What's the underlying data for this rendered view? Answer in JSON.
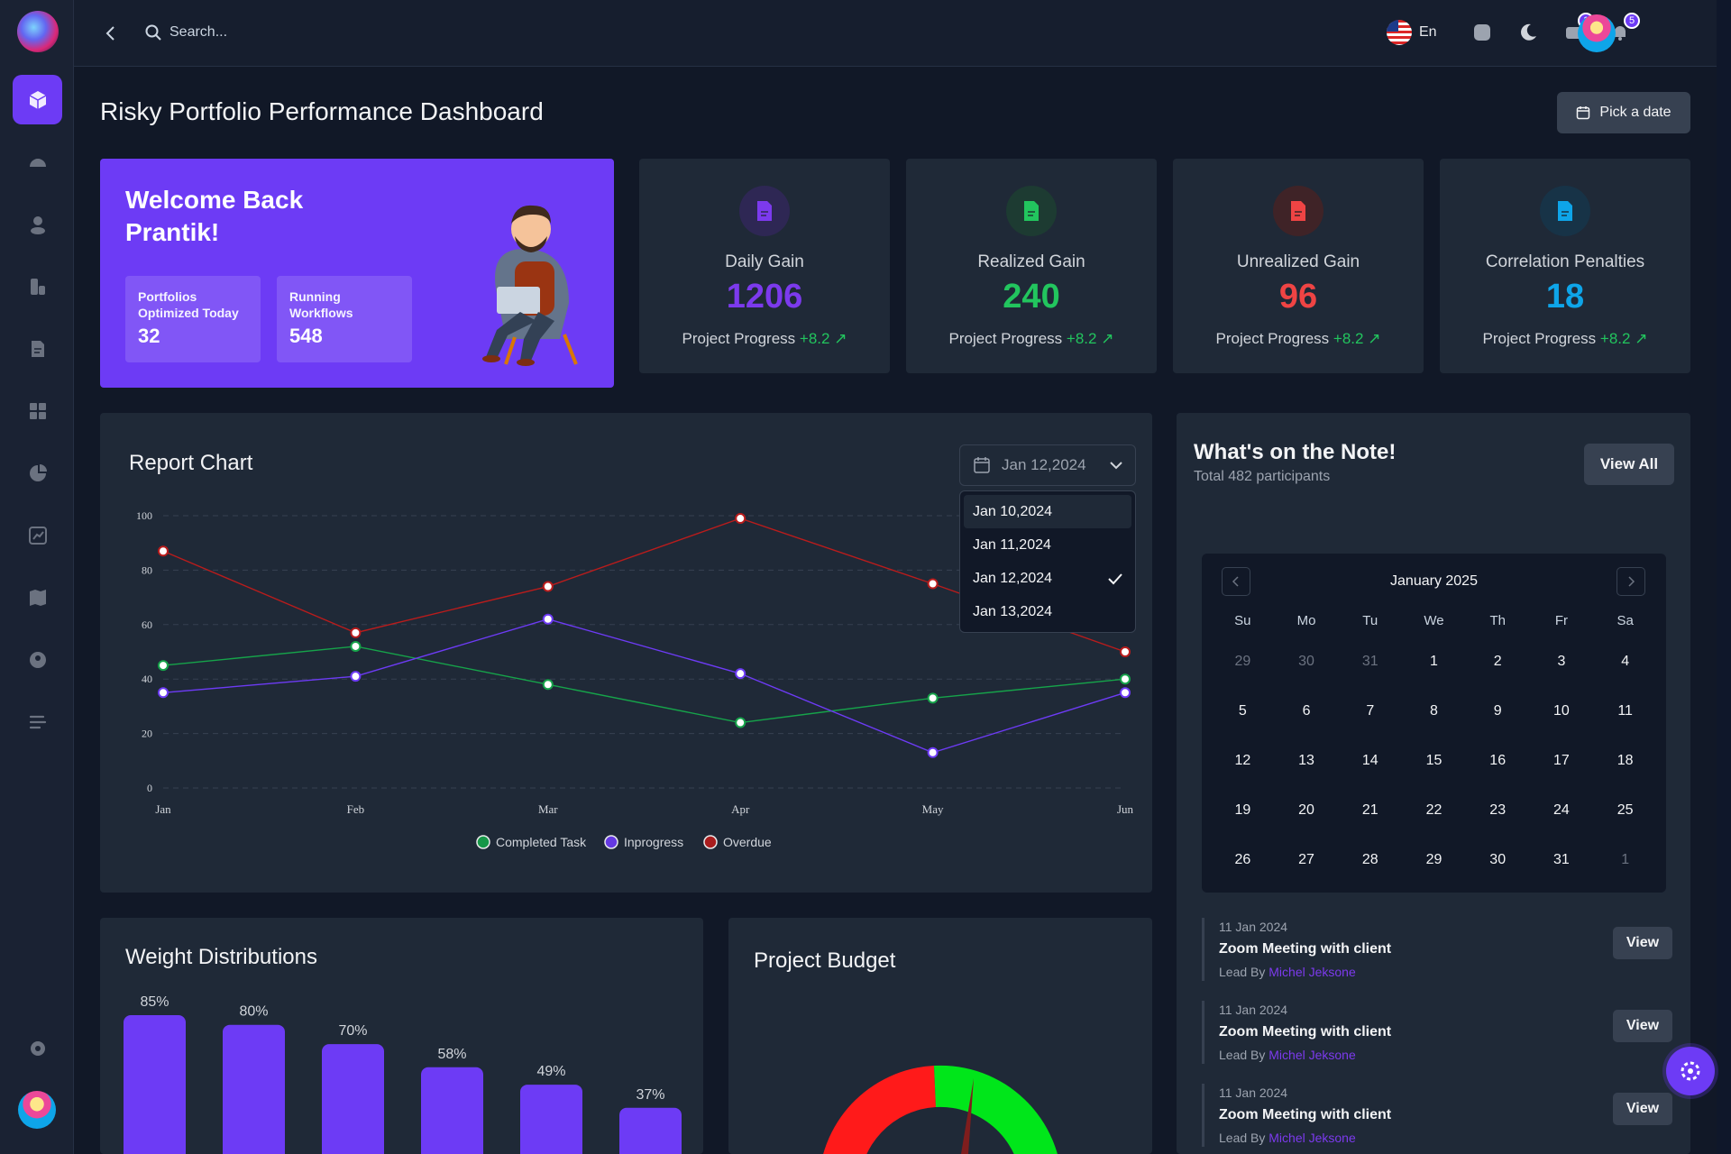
{
  "header": {
    "search_placeholder": "Search...",
    "language": "En",
    "mail_badge": "1",
    "notification_badge": "5"
  },
  "page": {
    "title": "Risky Portfolio Performance Dashboard",
    "pick_date_label": "Pick a date"
  },
  "welcome": {
    "title": "Welcome Back Prantik!",
    "stats": [
      {
        "label": "Portfolios Optimized Today",
        "value": "32"
      },
      {
        "label": "Running Workflows",
        "value": "548"
      }
    ]
  },
  "stat_cards": [
    {
      "title": "Daily Gain",
      "value": "1206",
      "progress_label": "Project Progress",
      "progress_delta": "+8.2",
      "color": "#7c3aed",
      "icon_bg": "#2e2754"
    },
    {
      "title": "Realized Gain",
      "value": "240",
      "progress_label": "Project Progress",
      "progress_delta": "+8.2",
      "color": "#22c55e",
      "icon_bg": "#1d3b32"
    },
    {
      "title": "Unrealized Gain",
      "value": "96",
      "progress_label": "Project Progress",
      "progress_delta": "+8.2",
      "color": "#ef4444",
      "icon_bg": "#3f2327"
    },
    {
      "title": "Correlation Penalties",
      "value": "18",
      "progress_label": "Project Progress",
      "progress_delta": "+8.2",
      "color": "#0ea5e9",
      "icon_bg": "#173347"
    }
  ],
  "report": {
    "title": "Report Chart",
    "selected_date": "Jan 12,2024",
    "dropdown_options": [
      "Jan 10,2024",
      "Jan 11,2024",
      "Jan 12,2024",
      "Jan 13,2024"
    ]
  },
  "chart_data": [
    {
      "type": "line",
      "categories": [
        "Jan",
        "Feb",
        "Mar",
        "Apr",
        "May",
        "Jun"
      ],
      "ylim": [
        0,
        100
      ],
      "yticks": [
        0,
        20,
        40,
        60,
        80,
        100
      ],
      "grid": true,
      "legend": "bottom-center",
      "series": [
        {
          "name": "Completed Task",
          "color": "#16a34a",
          "values": [
            45,
            52,
            38,
            24,
            33,
            40
          ]
        },
        {
          "name": "Inprogress",
          "color": "#6d3bf5",
          "values": [
            35,
            41,
            62,
            42,
            13,
            35
          ]
        },
        {
          "name": "Overdue",
          "color": "#b91c1c",
          "values": [
            87,
            57,
            74,
            99,
            75,
            50
          ]
        }
      ]
    },
    {
      "type": "bar",
      "title": "Weight Distributions",
      "values": [
        85,
        80,
        70,
        58,
        49,
        37
      ],
      "labels": [
        "85%",
        "80%",
        "70%",
        "58%",
        "49%",
        "37%"
      ],
      "color": "#6d3bf5"
    }
  ],
  "notes": {
    "title": "What's on the Note!",
    "subtitle": "Total 482 participants",
    "view_all_label": "View All",
    "calendar": {
      "month_label": "January 2025",
      "weekdays": [
        "Su",
        "Mo",
        "Tu",
        "We",
        "Th",
        "Fr",
        "Sa"
      ],
      "days": [
        {
          "d": "29",
          "muted": true
        },
        {
          "d": "30",
          "muted": true
        },
        {
          "d": "31",
          "muted": true
        },
        {
          "d": "1"
        },
        {
          "d": "2"
        },
        {
          "d": "3"
        },
        {
          "d": "4"
        },
        {
          "d": "5"
        },
        {
          "d": "6"
        },
        {
          "d": "7"
        },
        {
          "d": "8"
        },
        {
          "d": "9"
        },
        {
          "d": "10"
        },
        {
          "d": "11"
        },
        {
          "d": "12"
        },
        {
          "d": "13"
        },
        {
          "d": "14"
        },
        {
          "d": "15"
        },
        {
          "d": "16"
        },
        {
          "d": "17"
        },
        {
          "d": "18"
        },
        {
          "d": "19"
        },
        {
          "d": "20"
        },
        {
          "d": "21"
        },
        {
          "d": "22"
        },
        {
          "d": "23"
        },
        {
          "d": "24"
        },
        {
          "d": "25"
        },
        {
          "d": "26"
        },
        {
          "d": "27"
        },
        {
          "d": "28"
        },
        {
          "d": "29"
        },
        {
          "d": "30"
        },
        {
          "d": "31"
        },
        {
          "d": "1",
          "muted": true
        }
      ]
    },
    "events": [
      {
        "date": "11 Jan 2024",
        "title": "Zoom Meeting with client",
        "lead_prefix": "Lead By",
        "lead_name": "Michel Jeksone",
        "view_label": "View"
      },
      {
        "date": "11 Jan 2024",
        "title": "Zoom Meeting with client",
        "lead_prefix": "Lead By",
        "lead_name": "Michel Jeksone",
        "view_label": "View"
      },
      {
        "date": "11 Jan 2024",
        "title": "Zoom Meeting with client",
        "lead_prefix": "Lead By",
        "lead_name": "Michel Jeksone",
        "view_label": "View"
      }
    ]
  },
  "budget": {
    "title": "Project Budget",
    "gauge_colors": [
      "#ff1a1a",
      "#00e61a"
    ]
  }
}
